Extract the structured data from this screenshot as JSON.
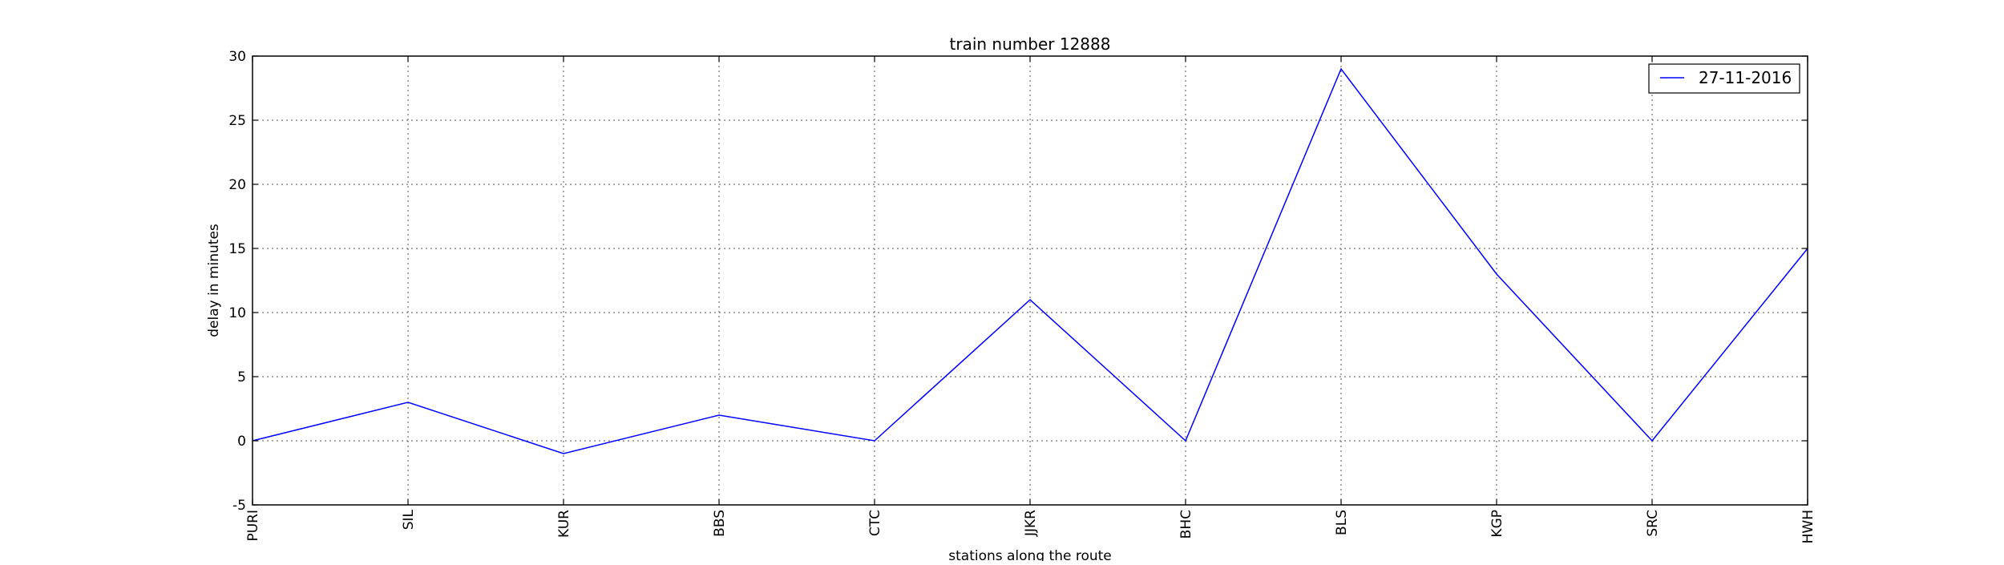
{
  "chart_data": {
    "type": "line",
    "title": "train number 12888",
    "xlabel": "stations along the route",
    "ylabel": "delay in minutes",
    "categories": [
      "PURI",
      "SIL",
      "KUR",
      "BBS",
      "CTC",
      "JJKR",
      "BHC",
      "BLS",
      "KGP",
      "SRC",
      "HWH"
    ],
    "series": [
      {
        "name": "27-11-2016",
        "values": [
          0,
          3,
          -1,
          2,
          0,
          11,
          0,
          29,
          13,
          0,
          15
        ],
        "color": "#0000ff"
      }
    ],
    "ylim": [
      -5,
      30
    ],
    "yticks": [
      -5,
      0,
      5,
      10,
      15,
      20,
      25,
      30
    ],
    "grid": true,
    "legend_position": "top-right"
  }
}
